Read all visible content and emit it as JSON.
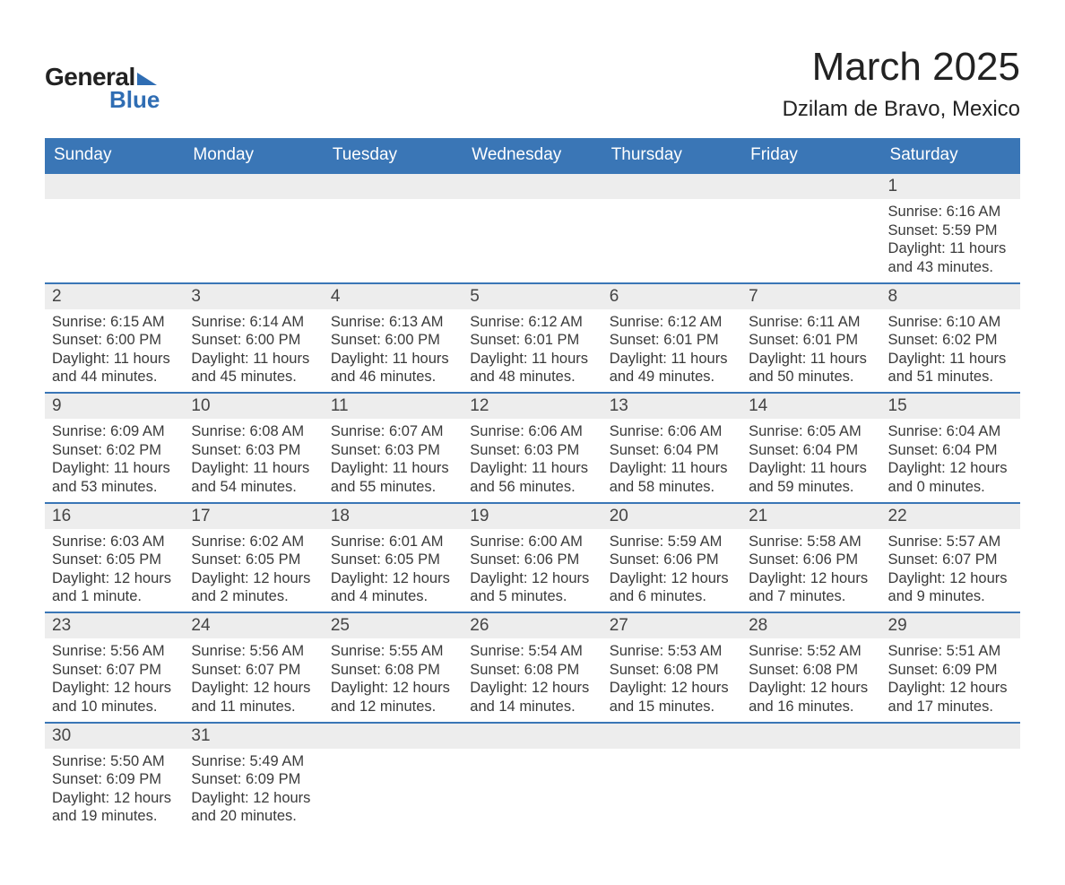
{
  "brand": {
    "word1": "General",
    "word2": "Blue"
  },
  "title": "March 2025",
  "subtitle": "Dzilam de Bravo, Mexico",
  "colors": {
    "header_bg": "#3a76b6",
    "header_text": "#ffffff",
    "daynum_bg": "#ededed",
    "row_border": "#3a76b6",
    "body_text": "#3a3a3a",
    "brand_blue": "#2f6db3",
    "page_bg": "#ffffff"
  },
  "typography": {
    "title_fontsize": 44,
    "subtitle_fontsize": 24,
    "weekday_fontsize": 19,
    "daynum_fontsize": 19,
    "cell_fontsize": 16.5
  },
  "weekdays": [
    "Sunday",
    "Monday",
    "Tuesday",
    "Wednesday",
    "Thursday",
    "Friday",
    "Saturday"
  ],
  "weeks": [
    [
      null,
      null,
      null,
      null,
      null,
      null,
      {
        "n": "1",
        "sunrise": "Sunrise: 6:16 AM",
        "sunset": "Sunset: 5:59 PM",
        "daylight": "Daylight: 11 hours and 43 minutes."
      }
    ],
    [
      {
        "n": "2",
        "sunrise": "Sunrise: 6:15 AM",
        "sunset": "Sunset: 6:00 PM",
        "daylight": "Daylight: 11 hours and 44 minutes."
      },
      {
        "n": "3",
        "sunrise": "Sunrise: 6:14 AM",
        "sunset": "Sunset: 6:00 PM",
        "daylight": "Daylight: 11 hours and 45 minutes."
      },
      {
        "n": "4",
        "sunrise": "Sunrise: 6:13 AM",
        "sunset": "Sunset: 6:00 PM",
        "daylight": "Daylight: 11 hours and 46 minutes."
      },
      {
        "n": "5",
        "sunrise": "Sunrise: 6:12 AM",
        "sunset": "Sunset: 6:01 PM",
        "daylight": "Daylight: 11 hours and 48 minutes."
      },
      {
        "n": "6",
        "sunrise": "Sunrise: 6:12 AM",
        "sunset": "Sunset: 6:01 PM",
        "daylight": "Daylight: 11 hours and 49 minutes."
      },
      {
        "n": "7",
        "sunrise": "Sunrise: 6:11 AM",
        "sunset": "Sunset: 6:01 PM",
        "daylight": "Daylight: 11 hours and 50 minutes."
      },
      {
        "n": "8",
        "sunrise": "Sunrise: 6:10 AM",
        "sunset": "Sunset: 6:02 PM",
        "daylight": "Daylight: 11 hours and 51 minutes."
      }
    ],
    [
      {
        "n": "9",
        "sunrise": "Sunrise: 6:09 AM",
        "sunset": "Sunset: 6:02 PM",
        "daylight": "Daylight: 11 hours and 53 minutes."
      },
      {
        "n": "10",
        "sunrise": "Sunrise: 6:08 AM",
        "sunset": "Sunset: 6:03 PM",
        "daylight": "Daylight: 11 hours and 54 minutes."
      },
      {
        "n": "11",
        "sunrise": "Sunrise: 6:07 AM",
        "sunset": "Sunset: 6:03 PM",
        "daylight": "Daylight: 11 hours and 55 minutes."
      },
      {
        "n": "12",
        "sunrise": "Sunrise: 6:06 AM",
        "sunset": "Sunset: 6:03 PM",
        "daylight": "Daylight: 11 hours and 56 minutes."
      },
      {
        "n": "13",
        "sunrise": "Sunrise: 6:06 AM",
        "sunset": "Sunset: 6:04 PM",
        "daylight": "Daylight: 11 hours and 58 minutes."
      },
      {
        "n": "14",
        "sunrise": "Sunrise: 6:05 AM",
        "sunset": "Sunset: 6:04 PM",
        "daylight": "Daylight: 11 hours and 59 minutes."
      },
      {
        "n": "15",
        "sunrise": "Sunrise: 6:04 AM",
        "sunset": "Sunset: 6:04 PM",
        "daylight": "Daylight: 12 hours and 0 minutes."
      }
    ],
    [
      {
        "n": "16",
        "sunrise": "Sunrise: 6:03 AM",
        "sunset": "Sunset: 6:05 PM",
        "daylight": "Daylight: 12 hours and 1 minute."
      },
      {
        "n": "17",
        "sunrise": "Sunrise: 6:02 AM",
        "sunset": "Sunset: 6:05 PM",
        "daylight": "Daylight: 12 hours and 2 minutes."
      },
      {
        "n": "18",
        "sunrise": "Sunrise: 6:01 AM",
        "sunset": "Sunset: 6:05 PM",
        "daylight": "Daylight: 12 hours and 4 minutes."
      },
      {
        "n": "19",
        "sunrise": "Sunrise: 6:00 AM",
        "sunset": "Sunset: 6:06 PM",
        "daylight": "Daylight: 12 hours and 5 minutes."
      },
      {
        "n": "20",
        "sunrise": "Sunrise: 5:59 AM",
        "sunset": "Sunset: 6:06 PM",
        "daylight": "Daylight: 12 hours and 6 minutes."
      },
      {
        "n": "21",
        "sunrise": "Sunrise: 5:58 AM",
        "sunset": "Sunset: 6:06 PM",
        "daylight": "Daylight: 12 hours and 7 minutes."
      },
      {
        "n": "22",
        "sunrise": "Sunrise: 5:57 AM",
        "sunset": "Sunset: 6:07 PM",
        "daylight": "Daylight: 12 hours and 9 minutes."
      }
    ],
    [
      {
        "n": "23",
        "sunrise": "Sunrise: 5:56 AM",
        "sunset": "Sunset: 6:07 PM",
        "daylight": "Daylight: 12 hours and 10 minutes."
      },
      {
        "n": "24",
        "sunrise": "Sunrise: 5:56 AM",
        "sunset": "Sunset: 6:07 PM",
        "daylight": "Daylight: 12 hours and 11 minutes."
      },
      {
        "n": "25",
        "sunrise": "Sunrise: 5:55 AM",
        "sunset": "Sunset: 6:08 PM",
        "daylight": "Daylight: 12 hours and 12 minutes."
      },
      {
        "n": "26",
        "sunrise": "Sunrise: 5:54 AM",
        "sunset": "Sunset: 6:08 PM",
        "daylight": "Daylight: 12 hours and 14 minutes."
      },
      {
        "n": "27",
        "sunrise": "Sunrise: 5:53 AM",
        "sunset": "Sunset: 6:08 PM",
        "daylight": "Daylight: 12 hours and 15 minutes."
      },
      {
        "n": "28",
        "sunrise": "Sunrise: 5:52 AM",
        "sunset": "Sunset: 6:08 PM",
        "daylight": "Daylight: 12 hours and 16 minutes."
      },
      {
        "n": "29",
        "sunrise": "Sunrise: 5:51 AM",
        "sunset": "Sunset: 6:09 PM",
        "daylight": "Daylight: 12 hours and 17 minutes."
      }
    ],
    [
      {
        "n": "30",
        "sunrise": "Sunrise: 5:50 AM",
        "sunset": "Sunset: 6:09 PM",
        "daylight": "Daylight: 12 hours and 19 minutes."
      },
      {
        "n": "31",
        "sunrise": "Sunrise: 5:49 AM",
        "sunset": "Sunset: 6:09 PM",
        "daylight": "Daylight: 12 hours and 20 minutes."
      },
      null,
      null,
      null,
      null,
      null
    ]
  ]
}
